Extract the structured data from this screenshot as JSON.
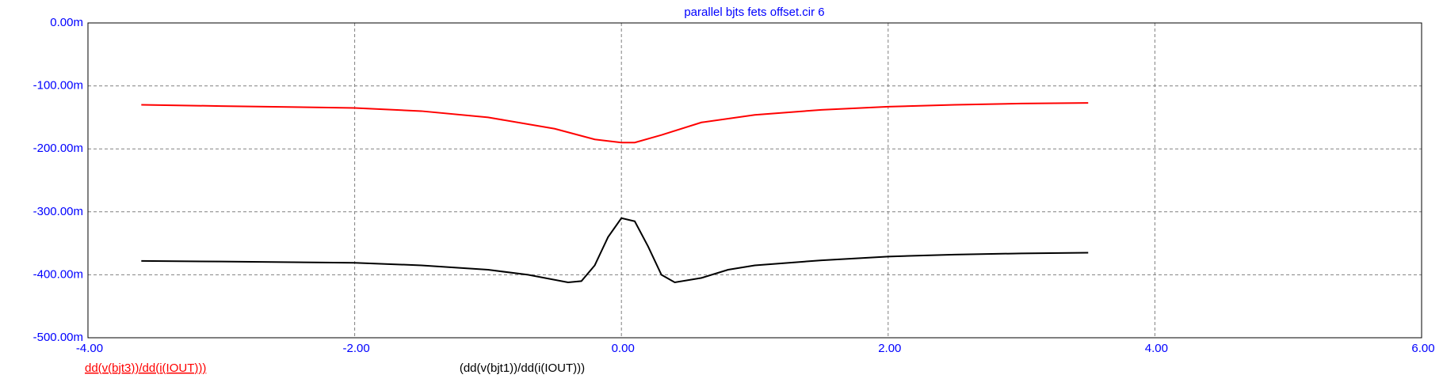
{
  "chart_data": {
    "type": "line",
    "title": "parallel bjts fets offset.cir 6",
    "xlim": [
      -4,
      6
    ],
    "xticks": [
      {
        "value": -4,
        "label": "-4.00"
      },
      {
        "value": -2,
        "label": "-2.00"
      },
      {
        "value": 0,
        "label": "0.00"
      },
      {
        "value": 2,
        "label": "2.00"
      },
      {
        "value": 4,
        "label": "4.00"
      },
      {
        "value": 6,
        "label": "6.00"
      }
    ],
    "ylim": [
      -500,
      0
    ],
    "yticks": [
      {
        "value": -500,
        "label": "-500.00m"
      },
      {
        "value": -400,
        "label": "-400.00m"
      },
      {
        "value": -300,
        "label": "-300.00m"
      },
      {
        "value": -200,
        "label": "-200.00m"
      },
      {
        "value": -100,
        "label": "-100.00m"
      },
      {
        "value": 0,
        "label": "0.00m"
      }
    ],
    "grid": true,
    "series": [
      {
        "name": "dd(v(bjt3))/dd(i(IOUT)))",
        "color": "#ff0000",
        "x": [
          -3.6,
          -3,
          -2,
          -1.5,
          -1,
          -0.5,
          -0.2,
          0,
          0.1,
          0.3,
          0.6,
          1,
          1.5,
          2,
          2.5,
          3,
          3.5
        ],
        "values": [
          -130,
          -132,
          -135,
          -140,
          -150,
          -168,
          -185,
          -190,
          -190,
          -178,
          -158,
          -146,
          -138,
          -133,
          -130,
          -128,
          -127
        ]
      },
      {
        "name": "(dd(v(bjt1))/dd(i(IOUT)))",
        "color": "#000000",
        "x": [
          -3.6,
          -3,
          -2,
          -1.5,
          -1,
          -0.7,
          -0.4,
          -0.3,
          -0.2,
          -0.1,
          0,
          0.1,
          0.2,
          0.3,
          0.4,
          0.6,
          0.8,
          1,
          1.5,
          2,
          2.5,
          3,
          3.5
        ],
        "values": [
          -378,
          -379,
          -381,
          -385,
          -392,
          -400,
          -412,
          -410,
          -385,
          -340,
          -310,
          -315,
          -355,
          -400,
          -412,
          -405,
          -392,
          -385,
          -377,
          -371,
          -368,
          -366,
          -365
        ]
      }
    ]
  }
}
